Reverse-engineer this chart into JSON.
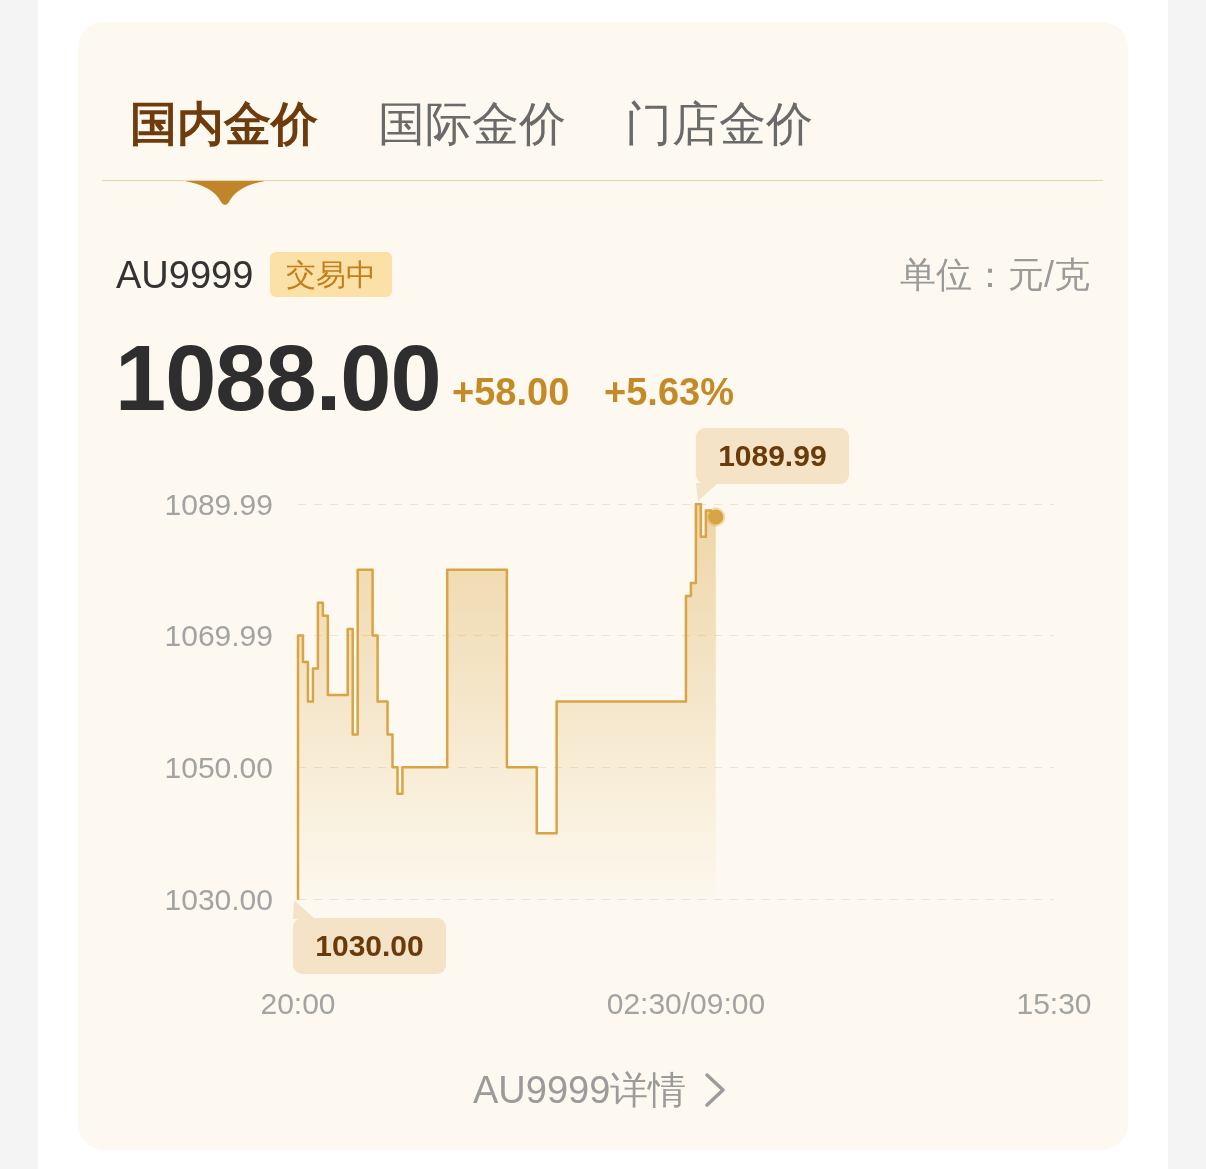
{
  "chart_data": {
    "type": "step",
    "title": "AU9999",
    "categories": [
      "20:00",
      null,
      null,
      null,
      null,
      null,
      null,
      null,
      null,
      null,
      null,
      null,
      null,
      null,
      null,
      null,
      null,
      null,
      null,
      null,
      null,
      null,
      null,
      null,
      null,
      null,
      null,
      null,
      null,
      null,
      null,
      null,
      null,
      null,
      null,
      null,
      null,
      null,
      null,
      null,
      null,
      null,
      null,
      null,
      null,
      null,
      null,
      null,
      null,
      null,
      null,
      null,
      null,
      null,
      null,
      null,
      null,
      null,
      null,
      null,
      null,
      null,
      null,
      null,
      null,
      null,
      null,
      null,
      null,
      null,
      null,
      null,
      null,
      null,
      null,
      null,
      null,
      null,
      "02:30/09:00",
      null,
      null,
      null,
      null,
      null,
      null,
      null,
      null,
      null,
      null,
      null,
      null,
      null,
      null,
      null,
      null,
      null,
      null,
      null,
      null,
      null,
      null,
      null,
      null,
      null,
      null,
      null,
      null,
      null,
      null,
      null,
      null,
      null,
      null,
      null,
      null,
      null,
      null,
      null,
      null,
      null,
      null,
      null,
      null,
      null,
      null,
      null,
      null,
      null,
      null,
      null,
      null,
      null,
      null,
      null,
      null,
      null,
      null,
      null,
      null,
      null,
      null,
      null,
      null,
      null,
      null,
      null,
      null,
      null,
      null,
      null,
      null,
      null,
      "15:30"
    ],
    "values": [
      1030,
      1070,
      1066,
      1060,
      1065,
      1075,
      1073,
      1061,
      1061,
      1061,
      1061,
      1071,
      1055,
      1080,
      1080,
      1080,
      1070,
      1060,
      1060,
      1055,
      1050,
      1046,
      1050,
      1050,
      1050,
      1050,
      1050,
      1050,
      1050,
      1050,
      1050,
      1080,
      1080,
      1080,
      1080,
      1080,
      1080,
      1080,
      1080,
      1080,
      1080,
      1080,
      1080,
      1050,
      1050,
      1050,
      1050,
      1050,
      1050,
      1040,
      1040,
      1040,
      1040,
      1060,
      1060,
      1060,
      1060,
      1060,
      1060,
      1060,
      1060,
      1060,
      1060,
      1060,
      1060,
      1060,
      1060,
      1060,
      1060,
      1060,
      1060,
      1060,
      1060,
      1060,
      1060,
      1060,
      1060,
      1060,
      1060,
      1076,
      1078,
      1089.99,
      1085,
      1089,
      1088,
      null,
      null,
      null,
      null,
      null,
      null,
      null,
      null,
      null,
      null,
      null,
      null,
      null,
      null,
      null,
      null,
      null,
      null,
      null,
      null,
      null,
      null,
      null,
      null,
      null,
      null,
      null,
      null,
      null,
      null,
      null,
      null,
      null,
      null,
      null,
      null,
      null,
      null,
      null,
      null,
      null,
      null,
      null,
      null,
      null,
      null,
      null,
      null,
      null,
      null,
      null,
      null,
      null,
      null,
      null,
      null,
      null,
      null,
      null,
      null,
      null,
      null,
      null,
      null,
      null,
      null,
      null,
      null
    ],
    "color": "#d9a443",
    "ylim": [
      1030,
      1089.99
    ],
    "yticks": [
      {
        "value": 1030,
        "label": "1030.00"
      },
      {
        "value": 1050,
        "label": "1050.00"
      },
      1069.99,
      1089.99
    ],
    "grid": "y",
    "annotations": [
      "国内金价",
      "国际金价",
      "门店金价",
      "交易中",
      "单位：元/克",
      "1088.00",
      "+58.00",
      "+5.63%",
      "AU9999详情",
      "1089.99",
      {
        "text": "1030.00",
        "x": "20:00",
        "y": 1030
      }
    ]
  }
}
